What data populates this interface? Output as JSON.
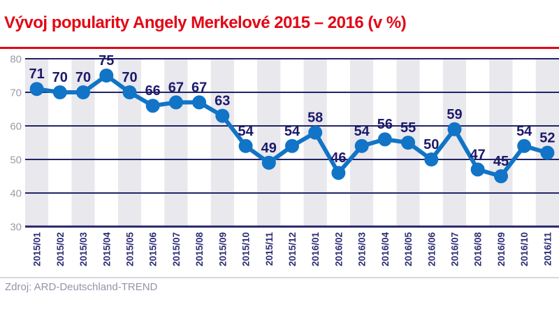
{
  "title": "Vývoj popularity Angely Merkelové 2015 – 2016 (v %)",
  "source": "Zdroj: ARD-Deutschland-TREND",
  "colors": {
    "accent_red": "#e30615",
    "line_blue": "#1174c6",
    "value_label_navy": "#1c1a6a",
    "grid_navy": "#232367",
    "x_label_navy": "#2c2c74",
    "y_tick_gray": "#9b9bad",
    "stripe_gray": "#e8e8ed",
    "stripe_white": "#ffffff",
    "source_gray": "#9494aa",
    "separator_gray": "#d7d7e0"
  },
  "chart_data": {
    "type": "line",
    "title": "Vývoj popularity Angely Merkelové 2015 – 2016 (v %)",
    "categories": [
      "2015/01",
      "2015/02",
      "2015/03",
      "2015/04",
      "2015/05",
      "2015/06",
      "2015/07",
      "2015/08",
      "2015/09",
      "2015/10",
      "2015/11",
      "2015/12",
      "2016/01",
      "2016/02",
      "2016/03",
      "2016/04",
      "2016/05",
      "2016/06",
      "2016/07",
      "2016/08",
      "2016/09",
      "2016/10",
      "2016/11"
    ],
    "values": [
      71,
      70,
      70,
      75,
      70,
      66,
      67,
      67,
      63,
      54,
      49,
      54,
      58,
      46,
      54,
      56,
      55,
      50,
      59,
      47,
      45,
      54,
      52
    ],
    "xlabel": "",
    "ylabel": "",
    "ylim": [
      30,
      80
    ],
    "yticks": [
      80,
      70,
      60,
      50,
      40,
      30
    ],
    "grid": "horizontal",
    "background_stripes": "alternating vertical bands, one per month, starting gray",
    "data_labels": true,
    "legend": "none"
  }
}
